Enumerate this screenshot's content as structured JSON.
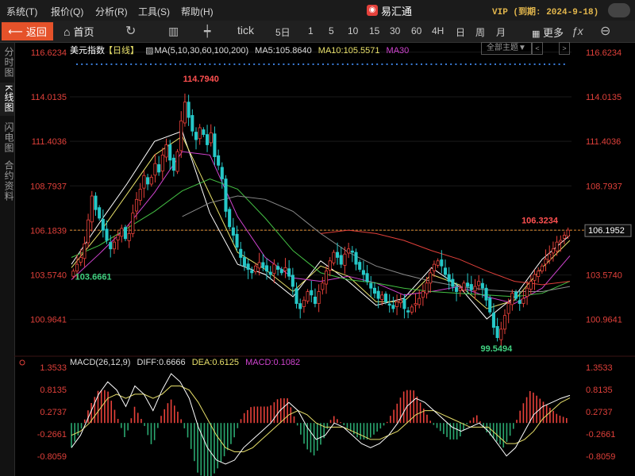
{
  "menubar": {
    "items": [
      "系统(T)",
      "报价(Q)",
      "分析(R)",
      "工具(S)",
      "帮助(H)"
    ],
    "app_title": "易汇通",
    "logo": "logo-icon",
    "vip_text": "VIP (到期: 2024-9-18)"
  },
  "toolbar": {
    "back_label": "返回",
    "home_label": "首页",
    "refresh_icon": "refresh-icon",
    "bar_icon": "bar-chart-icon",
    "candle_icon": "candlestick-icon",
    "periods": [
      "tick",
      "5日",
      "1",
      "5",
      "10",
      "15",
      "30",
      "60",
      "4H",
      "日",
      "周",
      "月"
    ],
    "more_label": "更多",
    "formula_icon": "fx-icon",
    "zoom_icon": "zoom-icon"
  },
  "sidebar": {
    "tabs": [
      "分时图",
      "K线图",
      "闪电图",
      "合约资料"
    ],
    "active": 1
  },
  "chart_header": {
    "instrument": "美元指数",
    "period": "【日线】",
    "ma_label": "MA(5,10,30,60,100,200)",
    "ma5": "MA5:105.8640",
    "ma10": "MA10:105.5571",
    "ma30": "MA30",
    "theme_button": "全部主题▼",
    "theme_prev": "<",
    "theme_next": ">"
  },
  "macd_header": {
    "label": "MACD(26,12,9)",
    "diff": "DIFF:0.6666",
    "dea": "DEA:0.6125",
    "macd": "MACD:0.1082"
  },
  "colors": {
    "up": "#e8413a",
    "down": "#26c8c8",
    "ma5": "#ffffff",
    "ma10": "#e8e06a",
    "ma30": "#d044d0",
    "ma60": "#44c044",
    "ma100": "#8a8a8a",
    "ma200": "#e0403a",
    "axis_text": "#e0403a",
    "diff": "#ffffff",
    "dea": "#e8e06a",
    "macd_pos": "#e8413a",
    "macd_neg": "#2aa870",
    "current_price_line": "#e08a30"
  },
  "chart_data": [
    {
      "type": "candlestick",
      "title": "美元指数【日线】",
      "y_ticks": [
        "116.6234",
        "114.0135",
        "111.4036",
        "108.7937",
        "106.1839",
        "103.5740",
        "100.9641"
      ],
      "ylim": [
        99.0,
        116.8
      ],
      "current_price": "106.1952",
      "annotations": {
        "high": "114.7940",
        "low_left": "103.6661",
        "low_right": "99.5494",
        "recent_high": "106.3234"
      },
      "close": [
        103.8,
        104.2,
        104.6,
        105.4,
        106.8,
        108.2,
        107.4,
        106.9,
        106.2,
        105.6,
        105.1,
        105.5,
        105.9,
        106.3,
        105.7,
        106.0,
        107.2,
        108.0,
        108.6,
        109.4,
        108.9,
        109.3,
        110.1,
        109.6,
        110.6,
        111.2,
        110.3,
        109.7,
        110.8,
        112.6,
        113.7,
        112.8,
        112.0,
        111.5,
        112.2,
        111.8,
        111.2,
        111.9,
        110.5,
        110.0,
        109.2,
        107.3,
        106.4,
        105.9,
        105.2,
        104.6,
        104.1,
        103.9,
        103.7,
        104.1,
        104.3,
        104.0,
        103.8,
        103.6,
        104.2,
        103.9,
        103.7,
        104.0,
        103.5,
        102.9,
        101.9,
        101.6,
        102.1,
        102.6,
        102.4,
        101.9,
        102.6,
        103.1,
        103.8,
        104.4,
        104.9,
        104.6,
        104.2,
        104.8,
        105.1,
        104.9,
        104.2,
        103.9,
        103.6,
        103.2,
        102.8,
        102.5,
        102.2,
        102.4,
        102.0,
        101.8,
        101.6,
        102.0,
        102.1,
        101.6,
        101.4,
        101.7,
        101.9,
        102.2,
        102.6,
        103.1,
        103.7,
        104.2,
        104.4,
        104.1,
        103.6,
        103.2,
        102.9,
        102.6,
        102.8,
        103.1,
        102.9,
        102.7,
        102.9,
        103.2,
        102.8,
        102.1,
        101.4,
        100.5,
        99.9,
        100.4,
        101.2,
        101.9,
        102.5,
        102.2,
        101.9,
        102.2,
        102.8,
        103.2,
        103.6,
        103.8,
        104.1,
        104.5,
        104.8,
        105.1,
        105.5,
        105.6,
        105.9,
        106.2
      ],
      "ma": {
        "MA5": [
          104.2,
          106.6,
          108.9,
          111.4,
          112.0,
          107.2,
          104.2,
          103.6,
          102.3,
          104.4,
          103.2,
          101.8,
          102.2,
          104.0,
          102.9,
          101.0,
          102.3,
          104.5,
          105.9
        ],
        "MA10": [
          104.0,
          106.0,
          108.3,
          110.6,
          111.7,
          108.3,
          104.9,
          103.9,
          102.6,
          104.1,
          103.5,
          102.0,
          102.0,
          103.6,
          103.0,
          101.6,
          102.1,
          104.0,
          105.6
        ],
        "MA30": [
          103.3,
          104.8,
          106.4,
          108.4,
          110.8,
          110.6,
          107.0,
          104.6,
          103.4,
          103.2,
          103.5,
          103.1,
          102.4,
          102.6,
          102.9,
          102.3,
          101.9,
          102.8,
          104.7
        ],
        "MA60": [
          104.6,
          105.3,
          106.3,
          107.3,
          108.5,
          109.2,
          108.6,
          106.9,
          105.0,
          103.7,
          103.3,
          103.1,
          102.8,
          102.6,
          102.5,
          102.4,
          102.3,
          102.5,
          103.2
        ],
        "MA100": [
          null,
          null,
          null,
          null,
          107.0,
          107.8,
          108.2,
          108.0,
          107.3,
          106.0,
          104.9,
          104.1,
          103.6,
          103.2,
          102.9,
          102.7,
          102.6,
          102.6,
          102.9
        ],
        "MA200": [
          null,
          null,
          null,
          null,
          null,
          null,
          null,
          null,
          null,
          106.0,
          106.2,
          106.0,
          105.6,
          105.0,
          104.5,
          103.8,
          103.2,
          103.0,
          103.2
        ]
      }
    },
    {
      "type": "macd",
      "title": "MACD(26,12,9)",
      "y_ticks": [
        "1.3533",
        "0.8135",
        "0.2737",
        "-0.2661",
        "-0.8059"
      ],
      "ylim": [
        -1.25,
        1.45
      ],
      "diff": [
        -0.6,
        -0.3,
        0.2,
        0.7,
        1.0,
        0.8,
        0.4,
        0.9,
        0.7,
        0.3,
        0.8,
        1.2,
        1.0,
        0.6,
        -0.1,
        -0.6,
        -0.9,
        -1.0,
        -0.9,
        -0.6,
        -0.4,
        -0.2,
        0.0,
        0.3,
        0.5,
        0.3,
        -0.1,
        -0.4,
        -0.3,
        0.0,
        -0.1,
        -0.3,
        -0.5,
        -0.6,
        -0.5,
        -0.3,
        0.0,
        0.4,
        0.6,
        0.5,
        0.3,
        0.1,
        -0.1,
        -0.2,
        -0.1,
        0.0,
        -0.2,
        -0.5,
        -0.8,
        -0.6,
        -0.2,
        0.2,
        0.4,
        0.5,
        0.6,
        0.67
      ],
      "dea": [
        -0.3,
        -0.2,
        0.0,
        0.3,
        0.6,
        0.7,
        0.6,
        0.7,
        0.7,
        0.6,
        0.7,
        0.9,
        0.9,
        0.8,
        0.5,
        0.1,
        -0.3,
        -0.6,
        -0.7,
        -0.7,
        -0.6,
        -0.4,
        -0.2,
        0.0,
        0.2,
        0.3,
        0.2,
        0.0,
        -0.1,
        -0.1,
        -0.1,
        -0.2,
        -0.3,
        -0.4,
        -0.4,
        -0.3,
        -0.2,
        0.0,
        0.2,
        0.3,
        0.3,
        0.2,
        0.1,
        0.0,
        -0.1,
        -0.1,
        -0.1,
        -0.3,
        -0.5,
        -0.5,
        -0.4,
        -0.2,
        0.1,
        0.3,
        0.5,
        0.61
      ]
    }
  ]
}
